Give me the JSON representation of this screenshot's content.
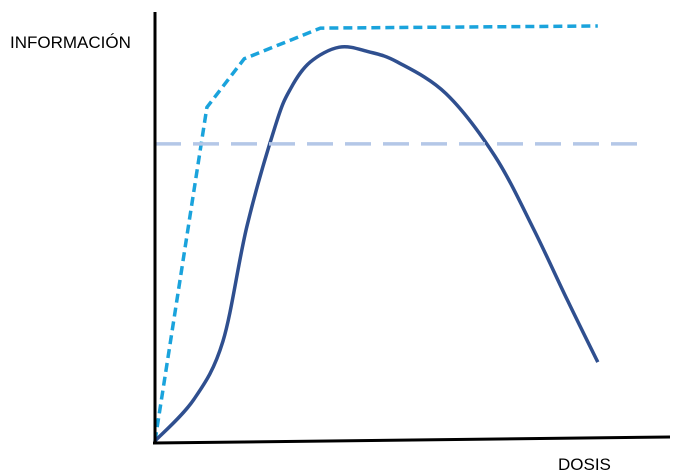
{
  "chart_data": {
    "type": "line",
    "title": "",
    "xlabel": "DOSIS",
    "ylabel": "INFORMACIÓN",
    "xlim": [
      0,
      100
    ],
    "ylim": [
      0,
      100
    ],
    "grid": false,
    "legend": "none",
    "axes_color": "#000000",
    "series": [
      {
        "style": "dashed",
        "color": "#1aa3dc",
        "x": [
          0,
          10.7,
          18.4,
          34.1,
          91.3
        ],
        "y": [
          0,
          80.4,
          92.1,
          99.5,
          100
        ]
      },
      {
        "style": "solid",
        "color": "#2f4f8f",
        "x": [
          0,
          8.0,
          14.0,
          19.0,
          24.9,
          28.0,
          32.0,
          38.0,
          44.0,
          50.0,
          60.0,
          70.0,
          78.0,
          85.0,
          91.3
        ],
        "y": [
          0,
          10.0,
          24.0,
          52.0,
          76.3,
          85.0,
          91.3,
          94.9,
          93.8,
          91.3,
          83.7,
          68.8,
          51.2,
          34.0,
          19.0
        ]
      },
      {
        "style": "long-dashed",
        "color": "#b4c7e7",
        "x": [
          0,
          100
        ],
        "y": [
          71.6,
          71.6
        ]
      }
    ]
  }
}
